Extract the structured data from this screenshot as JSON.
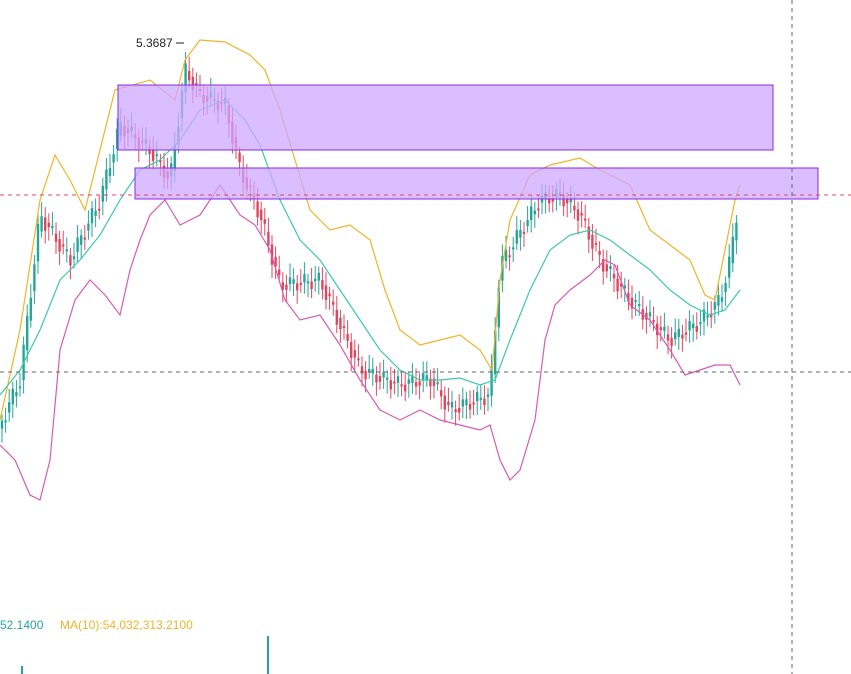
{
  "chart": {
    "high_label": "5.3687"
  },
  "indicators": {
    "volume_value": "52.1400",
    "ma10": "MA(10):54,032,313.2100"
  }
}
